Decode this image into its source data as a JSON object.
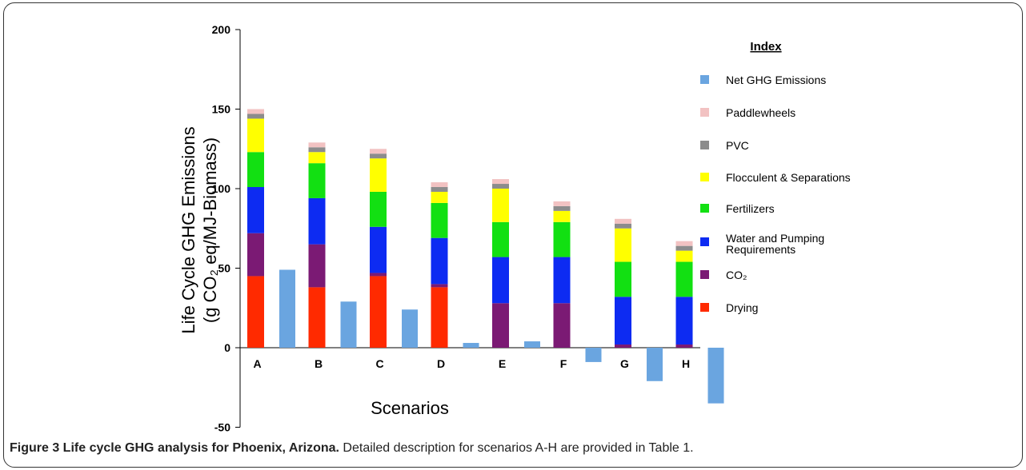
{
  "caption": {
    "bold": "Figure 3 Life cycle GHG analysis for Phoenix, Arizona.",
    "text": " Detailed description for scenarios A-H are provided in Table 1."
  },
  "chart_data": {
    "type": "bar",
    "stacked": true,
    "xlabel": "Scenarios",
    "ylabel_line1": "Life Cycle GHG Emissions",
    "ylabel_line2": "(g CO₂ eq/MJ-Biomass)",
    "ylim": [
      -50,
      200
    ],
    "yticks": [
      -50,
      0,
      50,
      100,
      150,
      200
    ],
    "grid": false,
    "legend_title": "Index",
    "legend_position": "right",
    "categories": [
      "A",
      "B",
      "C",
      "D",
      "E",
      "F",
      "G",
      "H"
    ],
    "series": [
      {
        "name": "Drying",
        "color": "#ff2a00",
        "values": [
          45,
          38,
          45,
          38,
          0,
          0,
          0,
          0
        ]
      },
      {
        "name": "CO₂",
        "color": "#7b1a74",
        "values": [
          27,
          27,
          2,
          2,
          28,
          28,
          2,
          2
        ]
      },
      {
        "name": "Water and Pumping Requirements",
        "color": "#0d2bf2",
        "values": [
          29,
          29,
          29,
          29,
          29,
          29,
          30,
          30
        ]
      },
      {
        "name": "Fertilizers",
        "color": "#12e012",
        "values": [
          22,
          22,
          22,
          22,
          22,
          22,
          22,
          22
        ]
      },
      {
        "name": "Flocculent & Separations",
        "color": "#ffff00",
        "values": [
          21,
          7,
          21,
          7,
          21,
          7,
          21,
          7
        ]
      },
      {
        "name": "PVC",
        "color": "#8c8c8c",
        "values": [
          3,
          3,
          3,
          3,
          3,
          3,
          3,
          3
        ]
      },
      {
        "name": "Paddlewheels",
        "color": "#f2c2c2",
        "values": [
          3,
          3,
          3,
          3,
          3,
          3,
          3,
          3
        ]
      }
    ],
    "net": {
      "name": "Net GHG Emissions",
      "color": "#6aa5e0",
      "values": [
        49,
        29,
        24,
        3,
        4,
        -9,
        -21,
        -35
      ]
    },
    "legend_order": [
      "Net GHG Emissions",
      "Paddlewheels",
      "PVC",
      "Flocculent & Separations",
      "Fertilizers",
      "Water and Pumping Requirements",
      "CO₂",
      "Drying"
    ]
  }
}
